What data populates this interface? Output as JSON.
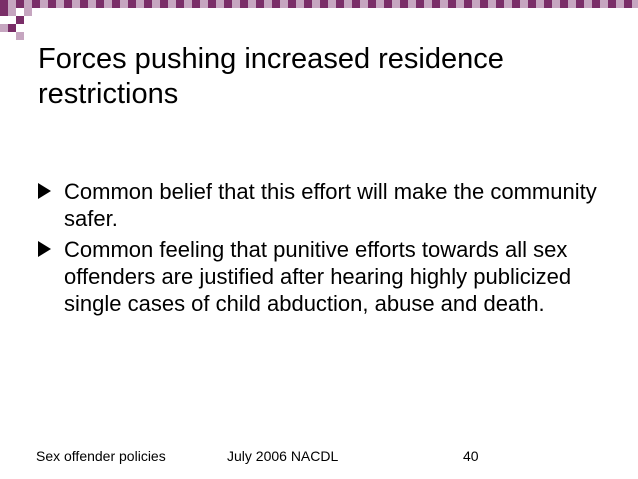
{
  "slide": {
    "title": "Forces pushing increased residence restrictions",
    "bullets": [
      "Common belief that this effort will make the community safer.",
      "Common feeling that punitive efforts towards all sex offenders are justified after hearing highly publicized single cases of child abduction, abuse and death."
    ],
    "footer": {
      "left": "Sex offender policies",
      "center": "July 2006 NACDL",
      "page_number": "40"
    }
  },
  "colors": {
    "accent_dark": "#7a2e68",
    "accent_light": "#c6a6c0",
    "background": "#ffffff",
    "text": "#000000"
  }
}
